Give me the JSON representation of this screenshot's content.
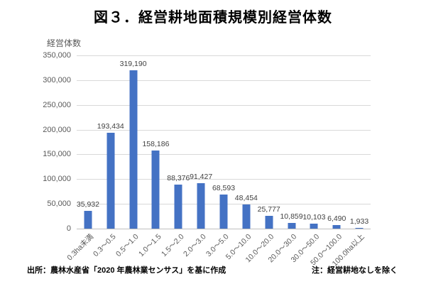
{
  "title": "図３．経営耕地面積規模別経営体数",
  "chart_data": {
    "type": "bar",
    "title": "図３．経営耕地面積規模別経営体数",
    "ylabel": "経営体数",
    "xlabel": "",
    "categories": [
      "0.3ha未満",
      "0.3～0.5",
      "0.5～1.0",
      "1.0～1.5",
      "1.5～2.0",
      "2.0～3.0",
      "3.0～5.0",
      "5.0～10.0",
      "10.0～20.0",
      "20.0～30.0",
      "30.0～50.0",
      "50.0～100.0",
      "100.0ha以上"
    ],
    "values": [
      35932,
      193434,
      319190,
      158186,
      88376,
      91427,
      68593,
      48454,
      25777,
      10859,
      10103,
      6490,
      1933
    ],
    "data_labels": [
      "35,932",
      "193,434",
      "319,190",
      "158,186",
      "88,376",
      "91,427",
      "68,593",
      "48,454",
      "25,777",
      "10,859",
      "10,103",
      "6,490",
      "1,933"
    ],
    "ylim": [
      0,
      350000
    ],
    "ytick_interval": 50000,
    "ytick_labels": [
      "0",
      "50,000",
      "100,000",
      "150,000",
      "200,000",
      "250,000",
      "300,000",
      "350,000"
    ],
    "grid": true,
    "legend_position": "none",
    "bar_color": "#4472C4",
    "gridline_color": "#D9D9D9",
    "axis_line_color": "#BFBFBF",
    "axis_text_color": "#595959",
    "label_text_color": "#404040"
  },
  "footer": {
    "source": "出所：農林水産省「2020 年農林業センサス」を基に作成",
    "note": "注：経営耕地なしを除く"
  }
}
